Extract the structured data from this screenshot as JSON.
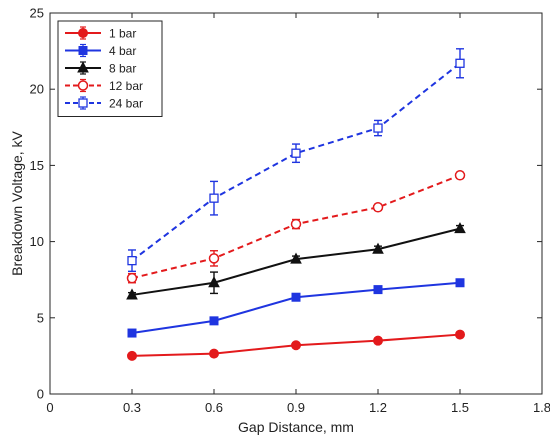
{
  "chart_data": {
    "type": "line",
    "title": "",
    "xlabel": "Gap Distance, mm",
    "ylabel": "Breakdown Voltage, kV",
    "xlim": [
      0,
      1.8
    ],
    "ylim": [
      0,
      25
    ],
    "xticks": [
      "0",
      "0.3",
      "0.6",
      "0.9",
      "1.2",
      "1.5",
      "1.8"
    ],
    "yticks": [
      "0",
      "5",
      "10",
      "15",
      "20",
      "25"
    ],
    "grid": false,
    "legend_position": "top-left",
    "x": [
      0.3,
      0.6,
      0.9,
      1.2,
      1.5
    ],
    "series": [
      {
        "name": "1 bar",
        "color": "#e31a1c",
        "line_style": "solid",
        "marker": "filled-circle",
        "values": [
          2.5,
          2.65,
          3.2,
          3.5,
          3.9
        ],
        "errors": [
          0.15,
          0.15,
          0.15,
          0.15,
          0.15
        ]
      },
      {
        "name": "4 bar",
        "color": "#1f35e0",
        "line_style": "solid",
        "marker": "filled-square",
        "values": [
          4.0,
          4.8,
          6.35,
          6.85,
          7.3
        ],
        "errors": [
          0.1,
          0.15,
          0.15,
          0.15,
          0.15
        ]
      },
      {
        "name": "8 bar",
        "color": "#111111",
        "line_style": "solid",
        "marker": "filled-triangle",
        "values": [
          6.5,
          7.3,
          8.85,
          9.5,
          10.85
        ],
        "errors": [
          0.15,
          0.7,
          0.2,
          0.2,
          0.2
        ]
      },
      {
        "name": "12 bar",
        "color": "#e31a1c",
        "line_style": "dashed",
        "marker": "open-circle",
        "values": [
          7.6,
          8.9,
          11.15,
          12.25,
          14.35
        ],
        "errors": [
          0.3,
          0.5,
          0.3,
          0.2,
          0.2
        ]
      },
      {
        "name": "24 bar",
        "color": "#1f35e0",
        "line_style": "dashed",
        "marker": "open-square",
        "values": [
          8.75,
          12.85,
          15.8,
          17.45,
          21.7
        ],
        "errors": [
          0.7,
          1.1,
          0.6,
          0.5,
          0.95
        ]
      }
    ]
  }
}
